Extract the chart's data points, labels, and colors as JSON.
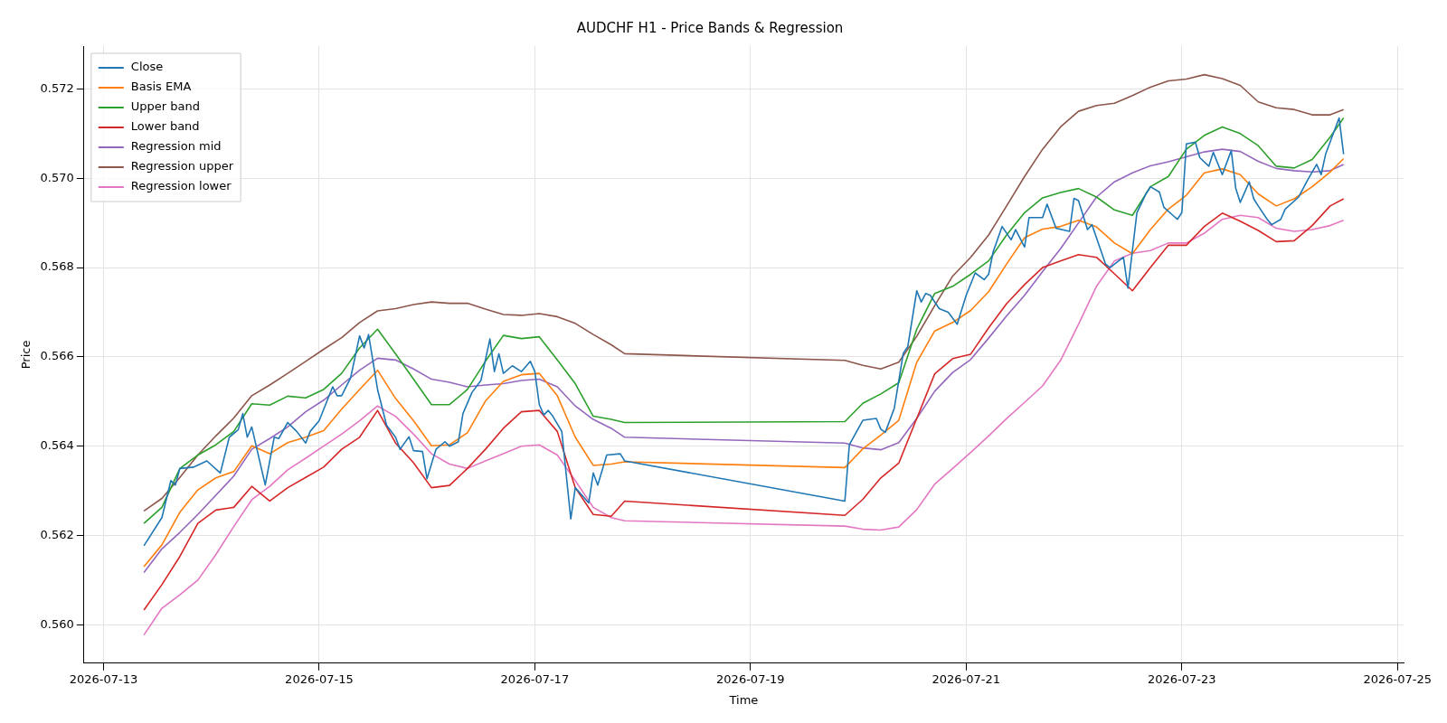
{
  "chart_data": {
    "type": "line",
    "title": "AUDCHF H1 - Price Bands & Regression",
    "xlabel": "Time",
    "ylabel": "Price",
    "x": [
      "2026-07-13T09:00",
      "2026-07-13T13:00",
      "2026-07-13T17:00",
      "2026-07-13T21:00",
      "2026-07-14T01:00",
      "2026-07-14T05:00",
      "2026-07-14T09:00",
      "2026-07-14T13:00",
      "2026-07-14T17:00",
      "2026-07-14T21:00",
      "2026-07-15T01:00",
      "2026-07-15T05:00",
      "2026-07-15T09:00",
      "2026-07-15T13:00",
      "2026-07-15T17:00",
      "2026-07-15T21:00",
      "2026-07-16T01:00",
      "2026-07-16T05:00",
      "2026-07-16T09:00",
      "2026-07-16T13:00",
      "2026-07-16T17:00",
      "2026-07-16T21:00",
      "2026-07-17T01:00",
      "2026-07-17T05:00",
      "2026-07-17T09:00",
      "2026-07-17T13:00",
      "2026-07-17T17:00",
      "2026-07-17T20:00",
      "2026-07-19T21:00",
      "2026-07-20T01:00",
      "2026-07-20T05:00",
      "2026-07-20T09:00",
      "2026-07-20T13:00",
      "2026-07-20T17:00",
      "2026-07-20T21:00",
      "2026-07-21T01:00",
      "2026-07-21T05:00",
      "2026-07-21T09:00",
      "2026-07-21T13:00",
      "2026-07-21T17:00",
      "2026-07-21T21:00",
      "2026-07-22T01:00",
      "2026-07-22T05:00",
      "2026-07-22T09:00",
      "2026-07-22T13:00",
      "2026-07-22T17:00",
      "2026-07-22T21:00",
      "2026-07-23T01:00",
      "2026-07-23T05:00",
      "2026-07-23T09:00",
      "2026-07-23T13:00",
      "2026-07-23T17:00",
      "2026-07-23T21:00",
      "2026-07-24T01:00",
      "2026-07-24T05:00",
      "2026-07-24T09:00",
      "2026-07-24T12:00"
    ],
    "series": [
      {
        "name": "Close",
        "color": "#1f77b4",
        "x": [
          "2026-07-13T09:00",
          "2026-07-13T13:00",
          "2026-07-13T15:00",
          "2026-07-13T16:00",
          "2026-07-13T17:00",
          "2026-07-13T20:00",
          "2026-07-13T23:00",
          "2026-07-14T02:00",
          "2026-07-14T04:00",
          "2026-07-14T06:00",
          "2026-07-14T07:00",
          "2026-07-14T08:00",
          "2026-07-14T09:00",
          "2026-07-14T12:00",
          "2026-07-14T14:00",
          "2026-07-14T15:00",
          "2026-07-14T17:00",
          "2026-07-14T19:00",
          "2026-07-14T21:00",
          "2026-07-14T22:00",
          "2026-07-15T00:00",
          "2026-07-15T03:00",
          "2026-07-15T04:00",
          "2026-07-15T05:00",
          "2026-07-15T07:00",
          "2026-07-15T09:00",
          "2026-07-15T10:00",
          "2026-07-15T11:00",
          "2026-07-15T13:00",
          "2026-07-15T15:00",
          "2026-07-15T17:00",
          "2026-07-15T18:00",
          "2026-07-15T20:00",
          "2026-07-15T21:00",
          "2026-07-15T23:00",
          "2026-07-16T00:00",
          "2026-07-16T02:00",
          "2026-07-16T04:00",
          "2026-07-16T05:00",
          "2026-07-16T07:00",
          "2026-07-16T08:00",
          "2026-07-16T10:00",
          "2026-07-16T12:00",
          "2026-07-16T14:00",
          "2026-07-16T15:00",
          "2026-07-16T16:00",
          "2026-07-16T17:00",
          "2026-07-16T19:00",
          "2026-07-16T21:00",
          "2026-07-16T23:00",
          "2026-07-17T00:00",
          "2026-07-17T01:00",
          "2026-07-17T02:00",
          "2026-07-17T03:00",
          "2026-07-17T04:00",
          "2026-07-17T06:00",
          "2026-07-17T08:00",
          "2026-07-17T09:00",
          "2026-07-17T12:00",
          "2026-07-17T13:00",
          "2026-07-17T14:00",
          "2026-07-17T16:00",
          "2026-07-17T19:00",
          "2026-07-17T20:00",
          "2026-07-19T21:00",
          "2026-07-19T22:00",
          "2026-07-20T01:00",
          "2026-07-20T04:00",
          "2026-07-20T05:00",
          "2026-07-20T06:00",
          "2026-07-20T08:00",
          "2026-07-20T10:00",
          "2026-07-20T11:00",
          "2026-07-20T13:00",
          "2026-07-20T14:00",
          "2026-07-20T15:00",
          "2026-07-20T16:00",
          "2026-07-20T18:00",
          "2026-07-20T20:00",
          "2026-07-20T22:00",
          "2026-07-21T00:00",
          "2026-07-21T02:00",
          "2026-07-21T04:00",
          "2026-07-21T05:00",
          "2026-07-21T06:00",
          "2026-07-21T08:00",
          "2026-07-21T10:00",
          "2026-07-21T11:00",
          "2026-07-21T13:00",
          "2026-07-21T14:00",
          "2026-07-21T17:00",
          "2026-07-21T18:00",
          "2026-07-21T20:00",
          "2026-07-21T23:00",
          "2026-07-22T00:00",
          "2026-07-22T01:00",
          "2026-07-22T03:00",
          "2026-07-22T04:00",
          "2026-07-22T07:00",
          "2026-07-22T08:00",
          "2026-07-22T11:00",
          "2026-07-22T12:00",
          "2026-07-22T14:00",
          "2026-07-22T16:00",
          "2026-07-22T17:00",
          "2026-07-22T19:00",
          "2026-07-22T20:00",
          "2026-07-22T22:00",
          "2026-07-22T23:00",
          "2026-07-23T00:00",
          "2026-07-23T01:00",
          "2026-07-23T03:00",
          "2026-07-23T04:00",
          "2026-07-23T06:00",
          "2026-07-23T07:00",
          "2026-07-23T09:00",
          "2026-07-23T11:00",
          "2026-07-23T12:00",
          "2026-07-23T13:00",
          "2026-07-23T15:00",
          "2026-07-23T16:00",
          "2026-07-23T17:00",
          "2026-07-23T19:00",
          "2026-07-23T20:00",
          "2026-07-23T22:00",
          "2026-07-23T23:00",
          "2026-07-24T02:00",
          "2026-07-24T04:00",
          "2026-07-24T06:00",
          "2026-07-24T07:00",
          "2026-07-24T08:00",
          "2026-07-24T11:00",
          "2026-07-24T12:00"
        ],
        "values": [
          0.56177,
          0.5624,
          0.56323,
          0.56313,
          0.5635,
          0.56353,
          0.56367,
          0.5634,
          0.5642,
          0.56437,
          0.56473,
          0.5642,
          0.56443,
          0.56313,
          0.5642,
          0.56417,
          0.56453,
          0.56433,
          0.56407,
          0.56433,
          0.56457,
          0.56533,
          0.56513,
          0.56513,
          0.56553,
          0.56647,
          0.5662,
          0.5665,
          0.56527,
          0.56447,
          0.5642,
          0.56393,
          0.56421,
          0.5639,
          0.56388,
          0.56327,
          0.56393,
          0.5641,
          0.564,
          0.5641,
          0.56473,
          0.5652,
          0.56547,
          0.5664,
          0.56567,
          0.56607,
          0.56563,
          0.5658,
          0.56567,
          0.5659,
          0.56567,
          0.56493,
          0.5647,
          0.5648,
          0.56467,
          0.56433,
          0.56237,
          0.56307,
          0.56273,
          0.5634,
          0.56313,
          0.5638,
          0.56383,
          0.56367,
          0.56277,
          0.56403,
          0.56458,
          0.56462,
          0.56438,
          0.56431,
          0.56485,
          0.56608,
          0.56623,
          0.56748,
          0.56723,
          0.56742,
          0.56738,
          0.56708,
          0.567,
          0.56673,
          0.56738,
          0.56788,
          0.56773,
          0.56785,
          0.56835,
          0.56892,
          0.56862,
          0.56885,
          0.56846,
          0.56912,
          0.56912,
          0.56942,
          0.56888,
          0.56881,
          0.56955,
          0.5695,
          0.56885,
          0.56896,
          0.56808,
          0.568,
          0.56823,
          0.56754,
          0.56923,
          0.56965,
          0.56981,
          0.56969,
          0.56935,
          0.56917,
          0.56908,
          0.56923,
          0.57077,
          0.57081,
          0.57046,
          0.57027,
          0.57058,
          0.57008,
          0.57062,
          0.56977,
          0.56946,
          0.56992,
          0.56954,
          0.56938,
          0.56908,
          0.56896,
          0.56908,
          0.56931,
          0.56958,
          0.56996,
          0.57031,
          0.57008,
          0.57054,
          0.57135,
          0.57054
        ]
      },
      {
        "name": "Basis EMA",
        "color": "#ff7f0e",
        "values": [
          0.5613,
          0.56179,
          0.56252,
          0.56302,
          0.56329,
          0.56343,
          0.56401,
          0.56383,
          0.56408,
          0.5642,
          0.56435,
          0.56483,
          0.56527,
          0.5657,
          0.56507,
          0.56457,
          0.56401,
          0.56403,
          0.5643,
          0.56501,
          0.56545,
          0.5656,
          0.56563,
          0.56513,
          0.5642,
          0.56357,
          0.5636,
          0.56365,
          0.56352,
          0.56394,
          0.56425,
          0.56458,
          0.56588,
          0.56658,
          0.56677,
          0.56704,
          0.56746,
          0.56808,
          0.56867,
          0.56886,
          0.56892,
          0.56906,
          0.56891,
          0.56855,
          0.56831,
          0.56885,
          0.56931,
          0.56962,
          0.57012,
          0.57021,
          0.57008,
          0.56965,
          0.56938,
          0.56954,
          0.56981,
          0.57014,
          0.57044
        ]
      },
      {
        "name": "Upper band",
        "color": "#2ca02c",
        "values": [
          0.56227,
          0.56263,
          0.5635,
          0.5638,
          0.56403,
          0.56433,
          0.56495,
          0.56492,
          0.56512,
          0.56508,
          0.56527,
          0.56563,
          0.5662,
          0.56662,
          0.56607,
          0.5655,
          0.56493,
          0.56493,
          0.56527,
          0.5659,
          0.56648,
          0.56641,
          0.56645,
          0.56593,
          0.5654,
          0.56467,
          0.5646,
          0.56453,
          0.56455,
          0.56496,
          0.56517,
          0.56542,
          0.56662,
          0.56742,
          0.56758,
          0.56785,
          0.56815,
          0.56873,
          0.56923,
          0.56956,
          0.56968,
          0.56977,
          0.56958,
          0.56929,
          0.56917,
          0.56981,
          0.57004,
          0.57065,
          0.57096,
          0.57115,
          0.571,
          0.57073,
          0.57027,
          0.57023,
          0.57042,
          0.57092,
          0.57135
        ]
      },
      {
        "name": "Lower band",
        "color": "#d62728",
        "values": [
          0.56033,
          0.5609,
          0.56153,
          0.56227,
          0.56257,
          0.56263,
          0.5631,
          0.56277,
          0.56307,
          0.5633,
          0.56353,
          0.56393,
          0.5642,
          0.5648,
          0.56407,
          0.56363,
          0.56307,
          0.56312,
          0.5635,
          0.56393,
          0.5644,
          0.56477,
          0.5648,
          0.56433,
          0.56307,
          0.56247,
          0.56243,
          0.56277,
          0.56245,
          0.56281,
          0.56329,
          0.56362,
          0.56462,
          0.56562,
          0.56596,
          0.56606,
          0.56665,
          0.56719,
          0.56762,
          0.568,
          0.56815,
          0.56829,
          0.56823,
          0.56786,
          0.56748,
          0.568,
          0.5685,
          0.5685,
          0.56892,
          0.56922,
          0.56904,
          0.56883,
          0.56858,
          0.5686,
          0.56894,
          0.56938,
          0.56954
        ]
      },
      {
        "name": "Regression mid",
        "color": "#9467bd",
        "values": [
          0.56117,
          0.5617,
          0.56207,
          0.56247,
          0.5629,
          0.56333,
          0.56393,
          0.56417,
          0.56443,
          0.56477,
          0.56503,
          0.56537,
          0.5657,
          0.56597,
          0.56593,
          0.56573,
          0.5655,
          0.56543,
          0.56533,
          0.56537,
          0.5654,
          0.56547,
          0.5655,
          0.56533,
          0.5649,
          0.5646,
          0.5644,
          0.5642,
          0.56407,
          0.56396,
          0.56392,
          0.56408,
          0.56462,
          0.56523,
          0.56565,
          0.56594,
          0.56642,
          0.56692,
          0.56738,
          0.56791,
          0.56842,
          0.569,
          0.56958,
          0.56992,
          0.57012,
          0.57028,
          0.57037,
          0.57048,
          0.57059,
          0.57065,
          0.5706,
          0.57038,
          0.57022,
          0.57017,
          0.57014,
          0.57017,
          0.57031
        ]
      },
      {
        "name": "Regression upper",
        "color": "#8c564b",
        "values": [
          0.56255,
          0.56283,
          0.5633,
          0.5638,
          0.56423,
          0.56463,
          0.56513,
          0.56537,
          0.56563,
          0.5659,
          0.56617,
          0.56643,
          0.56677,
          0.56703,
          0.56708,
          0.56717,
          0.56723,
          0.5672,
          0.5672,
          0.56707,
          0.56695,
          0.56693,
          0.56697,
          0.5669,
          0.56675,
          0.5665,
          0.56627,
          0.56607,
          0.56592,
          0.56581,
          0.56573,
          0.56588,
          0.56646,
          0.56715,
          0.56781,
          0.56823,
          0.56873,
          0.56938,
          0.57004,
          0.57065,
          0.57115,
          0.5715,
          0.57163,
          0.57168,
          0.57185,
          0.57204,
          0.57218,
          0.57222,
          0.57232,
          0.57223,
          0.57208,
          0.57171,
          0.57158,
          0.57154,
          0.57142,
          0.57142,
          0.57154
        ]
      },
      {
        "name": "Regression lower",
        "color": "#e377c2",
        "values": [
          0.55977,
          0.56037,
          0.56067,
          0.561,
          0.56157,
          0.5622,
          0.5628,
          0.5631,
          0.56347,
          0.56373,
          0.564,
          0.56427,
          0.56457,
          0.5649,
          0.56467,
          0.56427,
          0.56383,
          0.5636,
          0.5635,
          0.56367,
          0.56383,
          0.564,
          0.56403,
          0.5638,
          0.56323,
          0.56263,
          0.5624,
          0.56233,
          0.56221,
          0.56214,
          0.56212,
          0.56219,
          0.56258,
          0.56315,
          0.5635,
          0.56386,
          0.56423,
          0.56462,
          0.56498,
          0.56535,
          0.56592,
          0.56673,
          0.56758,
          0.56815,
          0.56832,
          0.56838,
          0.56855,
          0.56855,
          0.56877,
          0.56908,
          0.56917,
          0.56912,
          0.56888,
          0.56881,
          0.56885,
          0.56894,
          0.56906
        ]
      }
    ],
    "xlim": [
      "2026-07-12T19:39",
      "2026-07-25T01:21"
    ],
    "xticks": [
      "2026-07-13",
      "2026-07-15",
      "2026-07-17",
      "2026-07-19",
      "2026-07-21",
      "2026-07-23",
      "2026-07-25"
    ],
    "ylim": [
      0.55914,
      0.57296
    ],
    "yticks": [
      {
        "value": 0.56,
        "label": "0.560"
      },
      {
        "value": 0.562,
        "label": "0.562"
      },
      {
        "value": 0.564,
        "label": "0.564"
      },
      {
        "value": 0.566,
        "label": "0.566"
      },
      {
        "value": 0.568,
        "label": "0.568"
      },
      {
        "value": 0.57,
        "label": "0.570"
      },
      {
        "value": 0.572,
        "label": "0.572"
      }
    ],
    "grid": true,
    "legend": "top left"
  }
}
